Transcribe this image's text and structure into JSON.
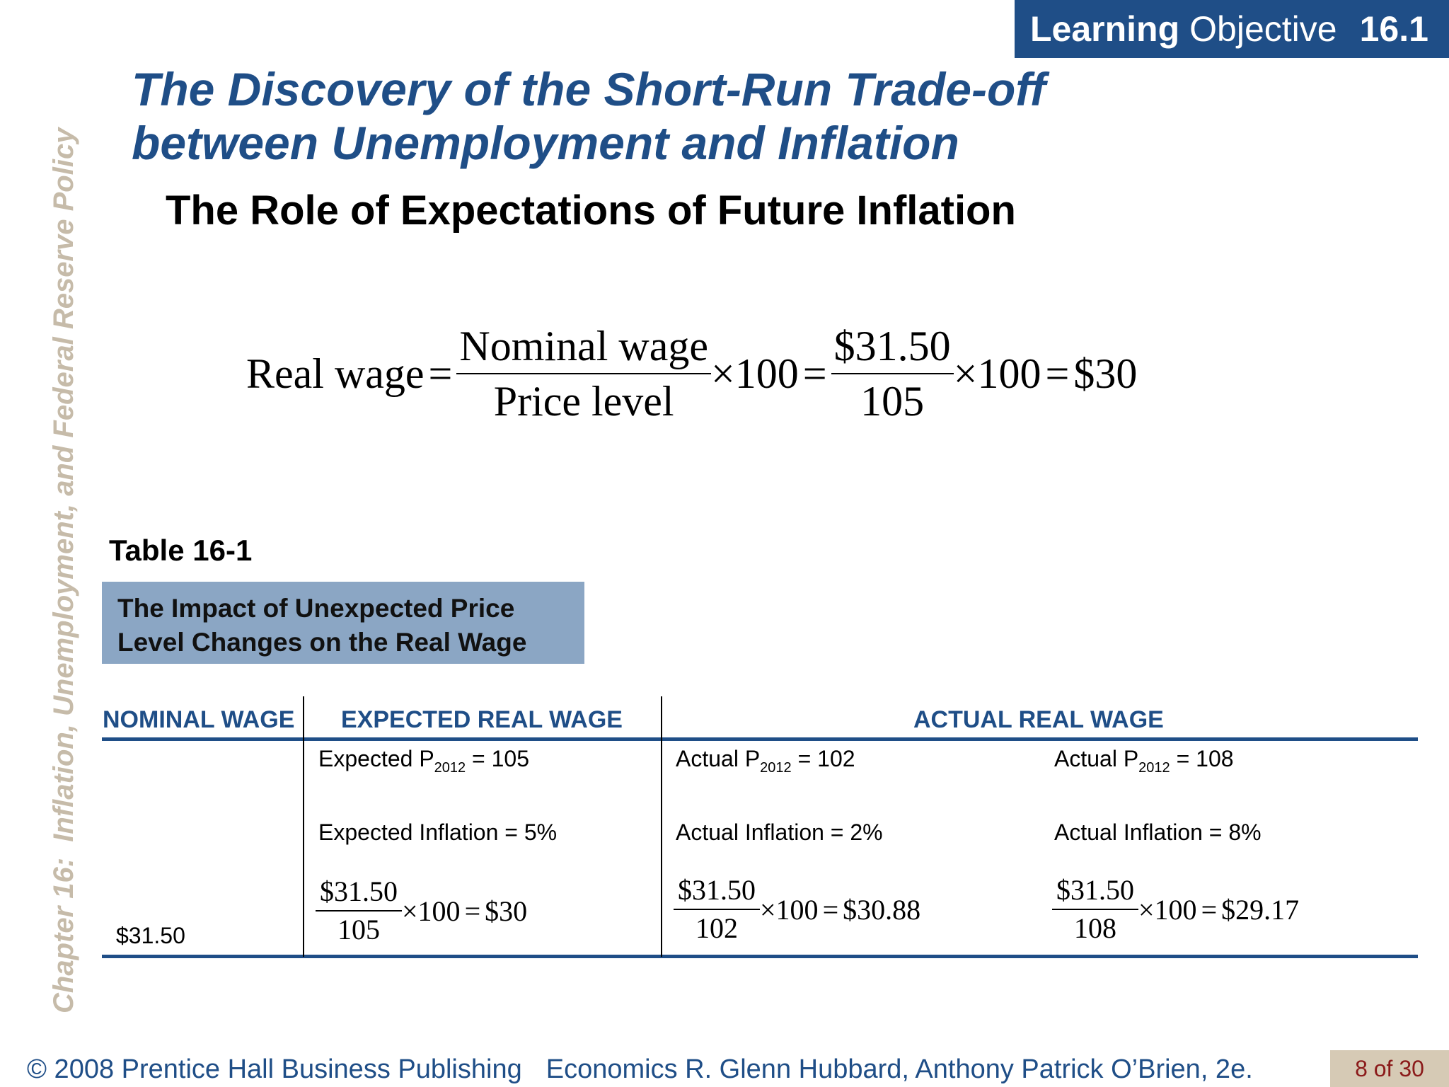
{
  "learning_objective": {
    "word1": "Learning",
    "word2": "Objective",
    "number": "16.1"
  },
  "side_text": "Chapter 16:  Inflation, Unemployment, and Federal Reserve Policy",
  "title": {
    "line1": "The Discovery of the Short-Run Trade-off",
    "line2": "between Unemployment and Inflation"
  },
  "subtitle": "The Role of Expectations of Future Inflation",
  "equation": {
    "lhs": "Real wage",
    "eq": "=",
    "numerator1": "Nominal wage",
    "denominator1": "Price level",
    "times": "×100",
    "numerator2": "$31.50",
    "denominator2": "105",
    "result": "$30"
  },
  "table": {
    "label": "Table 16-1",
    "caption_line1": "The Impact of Unexpected Price",
    "caption_line2": "Level Changes on the Real Wage",
    "headers": {
      "nominal": "NOMINAL WAGE",
      "expected": "EXPECTED REAL WAGE",
      "actual": "ACTUAL REAL WAGE"
    },
    "nominal_wage": "$31.50",
    "expected": {
      "p_label": "Expected P",
      "p_sub": "2012",
      "p_value": " = 105",
      "inflation": "Expected Inflation = 5%",
      "num": "$31.50",
      "den": "105",
      "times": "×100",
      "eq": "=",
      "result": "$30"
    },
    "actual1": {
      "p_label": "Actual P",
      "p_sub": "2012",
      "p_value": " = 102",
      "inflation": "Actual Inflation = 2%",
      "num": "$31.50",
      "den": "102",
      "times": "×100",
      "eq": "=",
      "result": "$30.88"
    },
    "actual2": {
      "p_label": "Actual P",
      "p_sub": "2012",
      "p_value": " = 108",
      "inflation": "Actual Inflation = 8%",
      "num": "$31.50",
      "den": "108",
      "times": "×100",
      "eq": "=",
      "result": "$29.17"
    }
  },
  "footer": {
    "copyright": "© 2008 Prentice Hall Business Publishing",
    "book": "Economics  R. Glenn Hubbard, Anthony Patrick O’Brien, 2e.",
    "page": "8 of 30"
  },
  "colors": {
    "primary": "#1f4e87",
    "caption_bg": "#8ba6c4",
    "side_text": "#c6bba9",
    "page_badge_bg": "#d6cab5",
    "page_badge_text": "#8b1a1a"
  }
}
